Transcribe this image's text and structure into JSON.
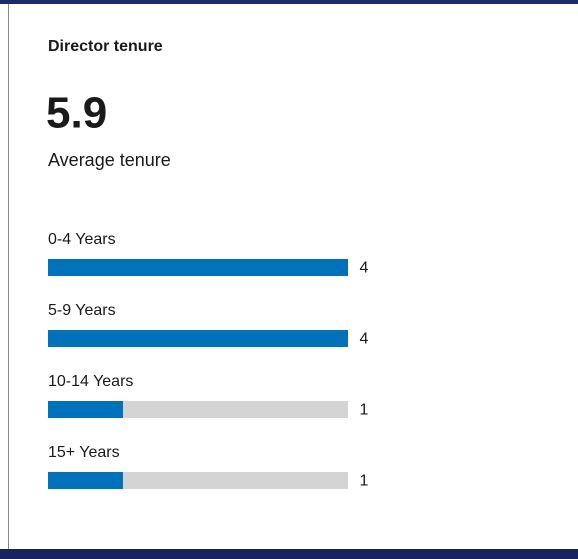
{
  "chart_data": {
    "type": "bar",
    "title": "Director tenure",
    "stat": 5.9,
    "stat_label": "Average tenure",
    "categories": [
      "0-4 Years",
      "5-9 Years",
      "10-14 Years",
      "15+ Years"
    ],
    "values": [
      4,
      4,
      1,
      1
    ],
    "color": "#0072bc",
    "track_color": "#d4d4d4",
    "xlim": [
      0,
      4
    ]
  }
}
